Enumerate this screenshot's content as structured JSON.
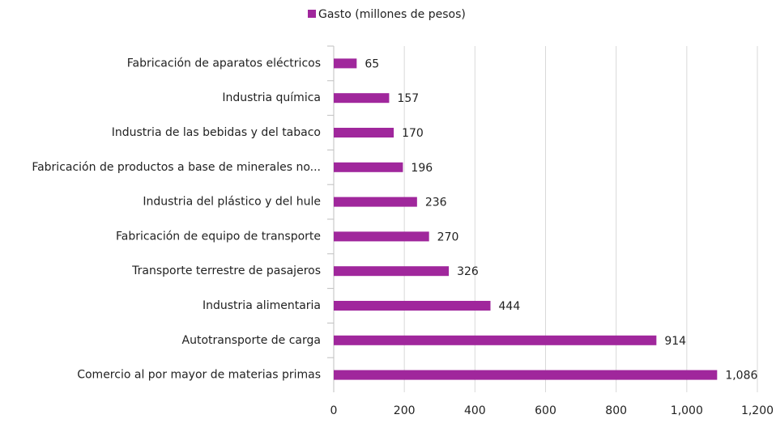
{
  "chart_data": {
    "type": "bar",
    "orientation": "horizontal",
    "legend": "top",
    "series": [
      {
        "name": "Gasto (millones de pesos)",
        "color": "#a0279c",
        "values": [
          65,
          157,
          170,
          196,
          236,
          270,
          326,
          444,
          914,
          1086
        ],
        "value_labels": [
          "65",
          "157",
          "170",
          "196",
          "236",
          "270",
          "326",
          "444",
          "914",
          "1,086"
        ]
      }
    ],
    "categories": [
      "Fabricación de aparatos eléctricos",
      "Industria química",
      "Industria de las bebidas y del tabaco",
      "Fabricación de productos a base de minerales no...",
      "Industria del plástico y del hule",
      "Fabricación de equipo de transporte",
      "Transporte terrestre de pasajeros",
      "Industria alimentaria",
      "Autotransporte de carga",
      "Comercio al por mayor de materias primas"
    ],
    "xlim": [
      0,
      1200
    ],
    "xticks": [
      0,
      200,
      400,
      600,
      800,
      {
        "value": 1000,
        "label": "1,000"
      },
      {
        "value": 1200,
        "label": "1,200"
      }
    ],
    "grid": true
  }
}
